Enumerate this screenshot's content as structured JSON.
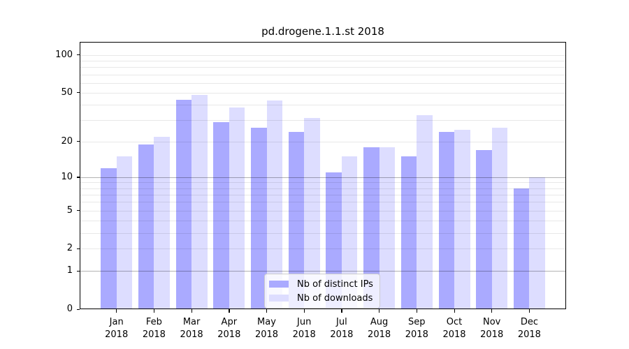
{
  "title": "pd.drogene.1.1.st 2018",
  "colors": {
    "ips": "#aaaaff",
    "downloads": "#ddddff",
    "axis": "#000000",
    "grid_minor": "rgba(0,0,0,0.09)",
    "grid_major": "rgba(0,0,0,0.30)",
    "legend_border": "#cccccc",
    "legend_bg": "rgba(255,255,255,0.8)"
  },
  "legend": {
    "items": [
      {
        "label": "Nb of distinct IPs",
        "series_key": "ips"
      },
      {
        "label": "Nb of downloads",
        "series_key": "downloads"
      }
    ],
    "position": "lower-center-inside"
  },
  "x_axis": {
    "months": [
      "Jan",
      "Feb",
      "Mar",
      "Apr",
      "May",
      "Jun",
      "Jul",
      "Aug",
      "Sep",
      "Oct",
      "Nov",
      "Dec"
    ],
    "year": "2018"
  },
  "y_axis": {
    "ticks": [
      "0",
      "1",
      "2",
      "5",
      "10",
      "20",
      "50",
      "100"
    ]
  },
  "chart_data": {
    "type": "bar",
    "title": "pd.drogene.1.1.st 2018",
    "categories": [
      "Jan 2018",
      "Feb 2018",
      "Mar 2018",
      "Apr 2018",
      "May 2018",
      "Jun 2018",
      "Jul 2018",
      "Aug 2018",
      "Sep 2018",
      "Oct 2018",
      "Nov 2018",
      "Dec 2018"
    ],
    "series": [
      {
        "name": "Nb of distinct IPs",
        "color": "#aaaaff",
        "values": [
          12,
          19,
          44,
          29,
          26,
          24,
          11,
          18,
          15,
          24,
          17,
          8
        ]
      },
      {
        "name": "Nb of downloads",
        "color": "#ddddff",
        "values": [
          15,
          22,
          48,
          38,
          43,
          31,
          15,
          18,
          33,
          25,
          26,
          10
        ]
      }
    ],
    "xlabel": "",
    "ylabel": "",
    "y_scale": "log1p",
    "ylim": [
      0,
      127
    ],
    "y_ticks": [
      0,
      1,
      2,
      5,
      10,
      20,
      50,
      100
    ],
    "y_gridlines_minor": [
      2,
      3,
      4,
      5,
      6,
      7,
      8,
      9,
      20,
      30,
      40,
      50,
      60,
      70,
      80,
      90,
      100
    ],
    "y_gridlines_major": [
      1,
      10
    ],
    "grid": true,
    "legend_position": "lower-center-inside"
  }
}
